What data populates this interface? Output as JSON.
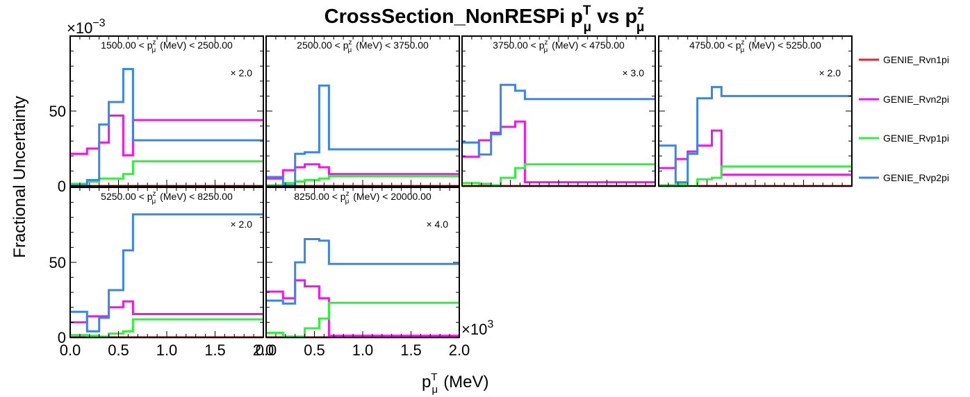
{
  "chart_data": {
    "type": "line",
    "title": "CrossSection_NonRESPi",
    "title_vars": [
      "p",
      "T",
      "μ",
      " vs ",
      "p",
      "z",
      "μ"
    ],
    "ylabel": "Fractional Uncertainty",
    "ylabel_multiplier": "×10",
    "ylabel_multiplier_exp": "−3",
    "xlabel": "p",
    "xlabel_sup": "T",
    "xlabel_sub": "μ",
    "xlabel_unit": "(MeV)",
    "xlabel_multiplier": "×10",
    "xlabel_multiplier_exp": "3",
    "xlim": [
      0,
      2.0
    ],
    "ylim": [
      0,
      100
    ],
    "x_ticks": [
      "0.0",
      "0.5",
      "1.0",
      "1.5",
      "2.0"
    ],
    "y_ticks": [
      "0",
      "50"
    ],
    "legend_position": "right",
    "x_edges": [
      0,
      0.175,
      0.3,
      0.4,
      0.55,
      0.65,
      2.0
    ],
    "series": [
      {
        "name": "GENIE_Rvn1pi",
        "color": "#e8262d"
      },
      {
        "name": "GENIE_Rvn2pi",
        "color": "#f015e8"
      },
      {
        "name": "GENIE_Rvp1pi",
        "color": "#2ef23a"
      },
      {
        "name": "GENIE_Rvp2pi",
        "color": "#3a86e6"
      }
    ],
    "panels": [
      {
        "label_low": "1500.00",
        "label_high": "2500.00",
        "scale": "2.0",
        "values": {
          "GENIE_Rvn1pi": [
            0,
            0,
            0,
            0,
            0,
            0
          ],
          "GENIE_Rvn2pi": [
            21.5,
            25,
            29,
            47,
            20.5,
            44
          ],
          "GENIE_Rvp1pi": [
            1.5,
            3,
            5,
            5,
            8,
            16.5
          ],
          "GENIE_Rvp2pi": [
            0.5,
            4,
            41,
            56,
            78,
            30.5
          ]
        }
      },
      {
        "label_low": "2500.00",
        "label_high": "3750.00",
        "scale": "",
        "values": {
          "GENIE_Rvn1pi": [
            0,
            0,
            0,
            0,
            0,
            0
          ],
          "GENIE_Rvn2pi": [
            5,
            10.5,
            12.5,
            14.5,
            12.5,
            8
          ],
          "GENIE_Rvp1pi": [
            0.5,
            2,
            3,
            4,
            5,
            6.5
          ],
          "GENIE_Rvp2pi": [
            6,
            0.5,
            21.5,
            22.5,
            67,
            24.5
          ]
        }
      },
      {
        "label_low": "3750.00",
        "label_high": "4750.00",
        "scale": "3.0",
        "values": {
          "GENIE_Rvn1pi": [
            0,
            0,
            0,
            0,
            0,
            0
          ],
          "GENIE_Rvn2pi": [
            19.5,
            30.5,
            35.5,
            39.5,
            43,
            2.5
          ],
          "GENIE_Rvp1pi": [
            2,
            1.5,
            0.5,
            5.5,
            12,
            14.5
          ],
          "GENIE_Rvp2pi": [
            29,
            21,
            34.5,
            67.5,
            63.5,
            58
          ]
        }
      },
      {
        "label_low": "4750.00",
        "label_high": "5250.00",
        "scale": "2.0",
        "values": {
          "GENIE_Rvn1pi": [
            0,
            0,
            0,
            0,
            0,
            0
          ],
          "GENIE_Rvn2pi": [
            12,
            18,
            23,
            27,
            37,
            7.5
          ],
          "GENIE_Rvp1pi": [
            0.5,
            1,
            0,
            4.5,
            5.5,
            13
          ],
          "GENIE_Rvp2pi": [
            27,
            2.5,
            21.5,
            58.5,
            66,
            60
          ]
        }
      },
      {
        "label_low": "5250.00",
        "label_high": "8250.00",
        "scale": "2.0",
        "values": {
          "GENIE_Rvn1pi": [
            0,
            0,
            0,
            0,
            0,
            0
          ],
          "GENIE_Rvn2pi": [
            10,
            14,
            14,
            20,
            24,
            15.5
          ],
          "GENIE_Rvp1pi": [
            1.5,
            1,
            0.5,
            2.5,
            4,
            12
          ],
          "GENIE_Rvp2pi": [
            17,
            4,
            13,
            31.5,
            58,
            82
          ]
        }
      },
      {
        "label_low": "8250.00",
        "label_high": "20000.00",
        "scale": "4.0",
        "values": {
          "GENIE_Rvn1pi": [
            0,
            0,
            0,
            0,
            0,
            0
          ],
          "GENIE_Rvn2pi": [
            30.5,
            26,
            38,
            34,
            26,
            1
          ],
          "GENIE_Rvp1pi": [
            3,
            0.5,
            0.5,
            6,
            12.5,
            23
          ],
          "GENIE_Rvp2pi": [
            24.5,
            22.5,
            50,
            65.5,
            64.5,
            49
          ]
        }
      }
    ]
  }
}
